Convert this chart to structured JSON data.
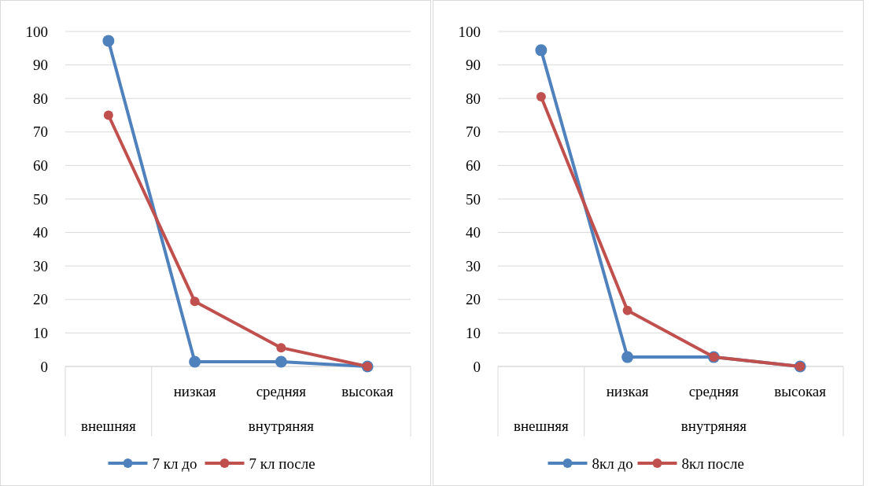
{
  "chart_data": [
    {
      "type": "line",
      "categories": [
        null,
        "низкая",
        "средняя",
        "высокая"
      ],
      "annotations": [
        "внешняя",
        "внутряняя"
      ],
      "ylim": [
        0,
        100
      ],
      "yticks": [
        0,
        10,
        20,
        30,
        40,
        50,
        60,
        70,
        80,
        90,
        100
      ],
      "grid": "y",
      "legend": "bottom",
      "marker": "circle",
      "series": [
        {
          "name": "7 кл до",
          "color": "#4f81bd",
          "values": [
            97.2,
            1.4,
            1.4,
            0
          ]
        },
        {
          "name": "7 кл после",
          "color": "#c0504d",
          "values": [
            75,
            19.4,
            5.6,
            0
          ]
        }
      ]
    },
    {
      "type": "line",
      "categories": [
        null,
        "низкая",
        "средняя",
        "высокая"
      ],
      "annotations": [
        "внешняя",
        "внутряняя"
      ],
      "ylim": [
        0,
        100
      ],
      "yticks": [
        0,
        10,
        20,
        30,
        40,
        50,
        60,
        70,
        80,
        90,
        100
      ],
      "grid": "y",
      "legend": "bottom",
      "marker": "circle",
      "series": [
        {
          "name": "8кл до",
          "color": "#4f81bd",
          "values": [
            94.4,
            2.8,
            2.8,
            0
          ]
        },
        {
          "name": "8кл после",
          "color": "#c0504d",
          "values": [
            80.5,
            16.7,
            2.8,
            0
          ]
        }
      ]
    }
  ]
}
